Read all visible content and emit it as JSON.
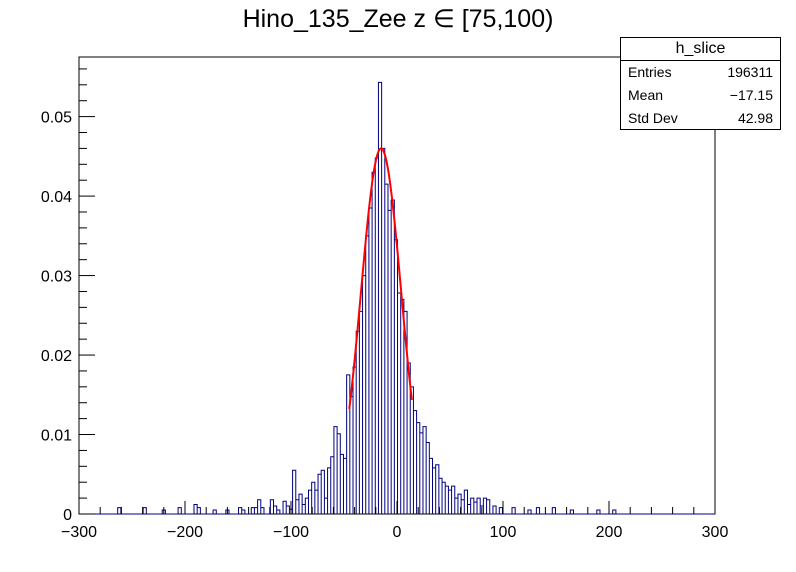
{
  "chart_data": {
    "type": "histogram",
    "title": "Hino_135_Zee z  ∈ [75,100)",
    "xlabel": "",
    "ylabel": "",
    "xlim": [
      -300,
      300
    ],
    "ylim": [
      0,
      0.0575
    ],
    "x_ticks": [
      -300,
      -200,
      -100,
      0,
      100,
      200,
      300
    ],
    "x_tick_labels": [
      "−300",
      "−200",
      "−100",
      "0",
      "100",
      "200",
      "300"
    ],
    "y_ticks": [
      0,
      0.01,
      0.02,
      0.03,
      0.04,
      0.05
    ],
    "y_tick_labels": [
      "0",
      "0.01",
      "0.02",
      "0.03",
      "0.04",
      "0.05"
    ],
    "grid": false,
    "line_color": "#000080",
    "fit_color": "#ff0000",
    "histogram": {
      "name": "h_slice",
      "bin_width": 3,
      "bins": [
        [
          -262,
          0.0008
        ],
        [
          -238,
          0.0008
        ],
        [
          -220,
          0.0005
        ],
        [
          -205,
          0.0008
        ],
        [
          -190,
          0.0012
        ],
        [
          -187,
          0.0008
        ],
        [
          -172,
          0.0005
        ],
        [
          -160,
          0.0005
        ],
        [
          -148,
          0.0008
        ],
        [
          -145,
          0.0005
        ],
        [
          -136,
          0.0008
        ],
        [
          -133,
          0.0008
        ],
        [
          -130,
          0.0018
        ],
        [
          -127,
          0.0008
        ],
        [
          -118,
          0.0018
        ],
        [
          -115,
          0.001
        ],
        [
          -112,
          0.0005
        ],
        [
          -106,
          0.0016
        ],
        [
          -103,
          0.001
        ],
        [
          -100,
          0.0006
        ],
        [
          -97,
          0.0055
        ],
        [
          -94,
          0.0018
        ],
        [
          -91,
          0.0025
        ],
        [
          -88,
          0.0012
        ],
        [
          -85,
          0.002
        ],
        [
          -82,
          0.003
        ],
        [
          -79,
          0.004
        ],
        [
          -76,
          0.003
        ],
        [
          -73,
          0.005
        ],
        [
          -70,
          0.0055
        ],
        [
          -67,
          0.002
        ],
        [
          -64,
          0.0058
        ],
        [
          -61,
          0.0072
        ],
        [
          -58,
          0.011
        ],
        [
          -55,
          0.0101
        ],
        [
          -52,
          0.0075
        ],
        [
          -49,
          0.007
        ],
        [
          -46,
          0.0175
        ],
        [
          -43,
          0.0148
        ],
        [
          -40,
          0.0185
        ],
        [
          -37,
          0.023
        ],
        [
          -34,
          0.0255
        ],
        [
          -31,
          0.03
        ],
        [
          -28,
          0.035
        ],
        [
          -25,
          0.0385
        ],
        [
          -22,
          0.043
        ],
        [
          -19,
          0.0448
        ],
        [
          -16,
          0.0543
        ],
        [
          -13,
          0.046
        ],
        [
          -10,
          0.0415
        ],
        [
          -7,
          0.0382
        ],
        [
          -4,
          0.0395
        ],
        [
          -1,
          0.0345
        ],
        [
          2,
          0.0278
        ],
        [
          5,
          0.027
        ],
        [
          8,
          0.0255
        ],
        [
          11,
          0.019
        ],
        [
          14,
          0.016
        ],
        [
          17,
          0.013
        ],
        [
          20,
          0.0115
        ],
        [
          23,
          0.0102
        ],
        [
          26,
          0.011
        ],
        [
          29,
          0.009
        ],
        [
          32,
          0.007
        ],
        [
          35,
          0.0058
        ],
        [
          38,
          0.0062
        ],
        [
          41,
          0.0045
        ],
        [
          44,
          0.004
        ],
        [
          47,
          0.0035
        ],
        [
          50,
          0.003
        ],
        [
          53,
          0.0035
        ],
        [
          56,
          0.002
        ],
        [
          59,
          0.0025
        ],
        [
          62,
          0.0018
        ],
        [
          65,
          0.003
        ],
        [
          68,
          0.0012
        ],
        [
          71,
          0.002
        ],
        [
          74,
          0.0015
        ],
        [
          77,
          0.002
        ],
        [
          80,
          0.001
        ],
        [
          83,
          0.002
        ],
        [
          86,
          0.0018
        ],
        [
          92,
          0.001
        ],
        [
          98,
          0.0008
        ],
        [
          110,
          0.0008
        ],
        [
          125,
          0.0005
        ],
        [
          133,
          0.0008
        ],
        [
          148,
          0.0008
        ],
        [
          165,
          0.0005
        ],
        [
          190,
          0.0005
        ],
        [
          205,
          0.0005
        ]
      ]
    },
    "fit": {
      "function": "gaus",
      "constant": 0.046,
      "mean": -15,
      "sigma": 19,
      "range": [
        -45,
        14
      ]
    },
    "stats": {
      "title": "h_slice",
      "rows": [
        {
          "label": "Entries",
          "value": "196311"
        },
        {
          "label": "Mean",
          "value": "−17.15"
        },
        {
          "label": "Std Dev",
          "value": "42.98"
        }
      ]
    }
  }
}
